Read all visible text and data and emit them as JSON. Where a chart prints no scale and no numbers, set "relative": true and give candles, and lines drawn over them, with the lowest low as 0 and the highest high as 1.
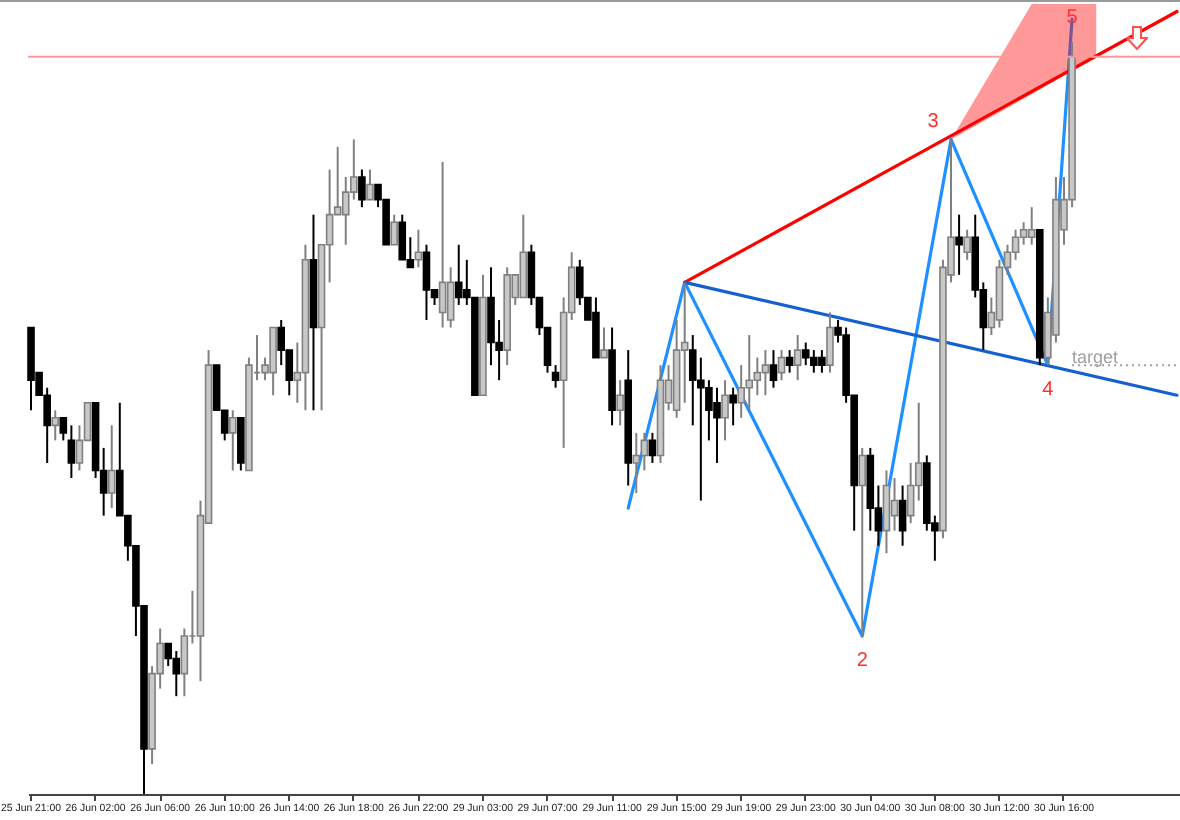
{
  "chart_data": {
    "type": "candlestick",
    "relative": true,
    "categories": [
      "25 Jun 21:00",
      null,
      null,
      null,
      null,
      null,
      null,
      null,
      "26 Jun 02:00",
      null,
      null,
      null,
      null,
      null,
      null,
      null,
      "26 Jun 06:00",
      null,
      null,
      null,
      null,
      null,
      null,
      null,
      "26 Jun 10:00",
      null,
      null,
      null,
      null,
      null,
      null,
      null,
      "26 Jun 14:00",
      null,
      null,
      null,
      null,
      null,
      null,
      null,
      "26 Jun 18:00",
      null,
      null,
      null,
      null,
      null,
      null,
      null,
      "26 Jun 22:00",
      null,
      null,
      null,
      null,
      null,
      null,
      null,
      "29 Jun 03:00",
      null,
      null,
      null,
      null,
      null,
      null,
      null,
      "29 Jun 07:00",
      null,
      null,
      null,
      null,
      null,
      null,
      null,
      "29 Jun 11:00",
      null,
      null,
      null,
      null,
      null,
      null,
      null,
      "29 Jun 15:00",
      null,
      null,
      null,
      null,
      null,
      null,
      null,
      "29 Jun 19:00",
      null,
      null,
      null,
      null,
      null,
      null,
      null,
      "29 Jun 23:00",
      null,
      null,
      null,
      null,
      null,
      null,
      null,
      "30 Jun 04:00",
      null,
      null,
      null,
      null,
      null,
      null,
      null,
      "30 Jun 08:00",
      null,
      null,
      null,
      null,
      null,
      null,
      null,
      "30 Jun 12:00",
      null,
      null,
      null,
      null,
      null,
      null,
      null,
      "30 Jun 16:00",
      null,
      null,
      null,
      null,
      null,
      null,
      null,
      null,
      null,
      null,
      null,
      null,
      null,
      null
    ],
    "ohlc": [
      [
        0.62,
        0.62,
        0.51,
        0.55
      ],
      [
        0.56,
        0.56,
        0.53,
        0.53
      ],
      [
        0.53,
        0.54,
        0.44,
        0.49
      ],
      [
        0.49,
        0.51,
        0.47,
        0.5
      ],
      [
        0.5,
        0.5,
        0.47,
        0.48
      ],
      [
        0.47,
        0.49,
        0.42,
        0.44
      ],
      [
        0.44,
        0.49,
        0.43,
        0.47
      ],
      [
        0.47,
        0.52,
        0.47,
        0.52
      ],
      [
        0.52,
        0.52,
        0.42,
        0.43
      ],
      [
        0.43,
        0.46,
        0.37,
        0.4
      ],
      [
        0.4,
        0.49,
        0.38,
        0.43
      ],
      [
        0.43,
        0.52,
        0.37,
        0.37
      ],
      [
        0.37,
        0.37,
        0.31,
        0.33
      ],
      [
        0.33,
        0.33,
        0.21,
        0.25
      ],
      [
        0.25,
        0.25,
        0,
        0.06
      ],
      [
        0.06,
        0.17,
        0.04,
        0.16
      ],
      [
        0.16,
        0.22,
        0.14,
        0.2
      ],
      [
        0.2,
        0.2,
        0.17,
        0.18
      ],
      [
        0.18,
        0.19,
        0.13,
        0.16
      ],
      [
        0.16,
        0.22,
        0.13,
        0.21
      ],
      [
        0.21,
        0.27,
        0.2,
        0.21
      ],
      [
        0.21,
        0.39,
        0.15,
        0.37
      ],
      [
        0.36,
        0.59,
        0.36,
        0.57
      ],
      [
        0.57,
        0.57,
        0.51,
        0.51
      ],
      [
        0.51,
        0.51,
        0.47,
        0.48
      ],
      [
        0.48,
        0.51,
        0.43,
        0.5
      ],
      [
        0.5,
        0.5,
        0.43,
        0.44
      ],
      [
        0.43,
        0.58,
        0.43,
        0.57
      ],
      [
        0.56,
        0.61,
        0.55,
        0.56
      ],
      [
        0.56,
        0.58,
        0.55,
        0.57
      ],
      [
        0.56,
        0.62,
        0.53,
        0.62
      ],
      [
        0.62,
        0.63,
        0.57,
        0.59
      ],
      [
        0.59,
        0.59,
        0.53,
        0.55
      ],
      [
        0.55,
        0.6,
        0.52,
        0.56
      ],
      [
        0.56,
        0.73,
        0.51,
        0.71
      ],
      [
        0.71,
        0.77,
        0.51,
        0.62
      ],
      [
        0.62,
        0.73,
        0.51,
        0.73
      ],
      [
        0.73,
        0.83,
        0.68,
        0.77
      ],
      [
        0.77,
        0.86,
        0.77,
        0.78
      ],
      [
        0.77,
        0.82,
        0.73,
        0.8
      ],
      [
        0.8,
        0.87,
        0.79,
        0.82
      ],
      [
        0.82,
        0.83,
        0.78,
        0.79
      ],
      [
        0.79,
        0.83,
        0.79,
        0.81
      ],
      [
        0.81,
        0.81,
        0.78,
        0.79
      ],
      [
        0.79,
        0.79,
        0.73,
        0.73
      ],
      [
        0.73,
        0.77,
        0.73,
        0.76
      ],
      [
        0.76,
        0.77,
        0.71,
        0.71
      ],
      [
        0.71,
        0.74,
        0.7,
        0.7
      ],
      [
        0.71,
        0.75,
        0.7,
        0.72
      ],
      [
        0.72,
        0.73,
        0.63,
        0.67
      ],
      [
        0.67,
        0.67,
        0.65,
        0.66
      ],
      [
        0.64,
        0.84,
        0.62,
        0.68
      ],
      [
        0.63,
        0.7,
        0.62,
        0.68
      ],
      [
        0.68,
        0.73,
        0.65,
        0.66
      ],
      [
        0.67,
        0.71,
        0.65,
        0.66
      ],
      [
        0.66,
        0.66,
        0.53,
        0.53
      ],
      [
        0.53,
        0.69,
        0.53,
        0.66
      ],
      [
        0.66,
        0.7,
        0.57,
        0.6
      ],
      [
        0.6,
        0.63,
        0.55,
        0.59
      ],
      [
        0.59,
        0.7,
        0.57,
        0.69
      ],
      [
        0.66,
        0.69,
        0.65,
        0.69
      ],
      [
        0.66,
        0.77,
        0.66,
        0.72
      ],
      [
        0.72,
        0.73,
        0.65,
        0.66
      ],
      [
        0.66,
        0.66,
        0.61,
        0.62
      ],
      [
        0.62,
        0.62,
        0.56,
        0.57
      ],
      [
        0.56,
        0.57,
        0.54,
        0.55
      ],
      [
        0.55,
        0.66,
        0.46,
        0.64
      ],
      [
        0.64,
        0.72,
        0.63,
        0.7
      ],
      [
        0.7,
        0.71,
        0.65,
        0.66
      ],
      [
        0.66,
        0.66,
        0.63,
        0.63
      ],
      [
        0.64,
        0.66,
        0.58,
        0.58
      ],
      [
        0.58,
        0.62,
        0.58,
        0.59
      ],
      [
        0.59,
        0.62,
        0.49,
        0.51
      ],
      [
        0.51,
        0.55,
        0.49,
        0.53
      ],
      [
        0.55,
        0.59,
        0.41,
        0.44
      ],
      [
        0.44,
        0.48,
        0.4,
        0.45
      ],
      [
        0.45,
        0.48,
        0.43,
        0.47
      ],
      [
        0.47,
        0.48,
        0.44,
        0.45
      ],
      [
        0.45,
        0.57,
        0.44,
        0.55
      ],
      [
        0.52,
        0.57,
        0.51,
        0.55
      ],
      [
        0.51,
        0.63,
        0.5,
        0.59
      ],
      [
        0.59,
        0.68,
        0.52,
        0.6
      ],
      [
        0.59,
        0.61,
        0.49,
        0.55
      ],
      [
        0.55,
        0.58,
        0.39,
        0.54
      ],
      [
        0.54,
        0.55,
        0.47,
        0.51
      ],
      [
        0.52,
        0.54,
        0.44,
        0.5
      ],
      [
        0.5,
        0.55,
        0.47,
        0.53
      ],
      [
        0.53,
        0.54,
        0.49,
        0.52
      ],
      [
        0.52,
        0.57,
        0.5,
        0.54
      ],
      [
        0.54,
        0.61,
        0.51,
        0.55
      ],
      [
        0.55,
        0.58,
        0.53,
        0.56
      ],
      [
        0.56,
        0.59,
        0.53,
        0.57
      ],
      [
        0.57,
        0.59,
        0.54,
        0.55
      ],
      [
        0.56,
        0.59,
        0.55,
        0.58
      ],
      [
        0.58,
        0.59,
        0.56,
        0.57
      ],
      [
        0.57,
        0.61,
        0.55,
        0.59
      ],
      [
        0.59,
        0.6,
        0.57,
        0.58
      ],
      [
        0.58,
        0.59,
        0.56,
        0.57
      ],
      [
        0.58,
        0.59,
        0.56,
        0.57
      ],
      [
        0.57,
        0.64,
        0.56,
        0.62
      ],
      [
        0.62,
        0.63,
        0.6,
        0.61
      ],
      [
        0.61,
        0.62,
        0.52,
        0.53
      ],
      [
        0.53,
        0.53,
        0.35,
        0.41
      ],
      [
        0.41,
        0.46,
        0.21,
        0.45
      ],
      [
        0.45,
        0.46,
        0.35,
        0.38
      ],
      [
        0.38,
        0.41,
        0.33,
        0.35
      ],
      [
        0.35,
        0.43,
        0.32,
        0.41
      ],
      [
        0.37,
        0.42,
        0.35,
        0.39
      ],
      [
        0.39,
        0.41,
        0.33,
        0.35
      ],
      [
        0.37,
        0.44,
        0.36,
        0.41
      ],
      [
        0.41,
        0.52,
        0.39,
        0.44
      ],
      [
        0.44,
        0.45,
        0.35,
        0.36
      ],
      [
        0.36,
        0.37,
        0.31,
        0.35
      ],
      [
        0.35,
        0.71,
        0.34,
        0.7
      ],
      [
        0.69,
        0.87,
        0.68,
        0.74
      ],
      [
        0.74,
        0.77,
        0.69,
        0.73
      ],
      [
        0.72,
        0.75,
        0.71,
        0.74
      ],
      [
        0.74,
        0.77,
        0.66,
        0.67
      ],
      [
        0.67,
        0.68,
        0.59,
        0.62
      ],
      [
        0.62,
        0.66,
        0.61,
        0.64
      ],
      [
        0.63,
        0.71,
        0.62,
        0.7
      ],
      [
        0.7,
        0.73,
        0.69,
        0.72
      ],
      [
        0.72,
        0.75,
        0.71,
        0.74
      ],
      [
        0.74,
        0.76,
        0.73,
        0.75
      ],
      [
        0.74,
        0.78,
        0.73,
        0.75
      ],
      [
        0.75,
        0.75,
        0.57,
        0.58
      ],
      [
        0.58,
        0.66,
        0.57,
        0.64
      ],
      [
        0.61,
        0.82,
        0.6,
        0.79
      ],
      [
        0.75,
        0.82,
        0.73,
        0.79
      ],
      [
        0.79,
        1.0,
        0.78,
        0.98
      ],
      null,
      null,
      null,
      null,
      null,
      null,
      null,
      null,
      null,
      null,
      null,
      null,
      null
    ],
    "series": [
      {
        "type": "line",
        "color": "#1e90ff",
        "values": [
          null,
          null,
          null,
          null,
          null,
          null,
          null,
          null,
          null,
          null,
          null,
          null,
          null,
          null,
          null,
          null,
          null,
          null,
          null,
          null,
          null,
          null,
          null,
          null,
          null,
          null,
          null,
          null,
          null,
          null,
          null,
          null,
          null,
          null,
          null,
          null,
          null,
          null,
          null,
          null,
          null,
          null,
          null,
          null,
          null,
          null,
          null,
          null,
          null,
          null,
          null,
          null,
          null,
          null,
          null,
          null,
          null,
          null,
          null,
          null,
          null,
          null,
          null,
          null,
          null,
          null,
          null,
          null,
          null,
          null,
          null,
          null,
          null,
          null,
          0.38,
          null,
          null,
          null,
          null,
          null,
          null,
          0.68,
          null,
          null,
          null,
          null,
          null,
          null,
          null,
          null,
          null,
          null,
          null,
          null,
          null,
          null,
          null,
          null,
          null,
          null,
          null,
          null,
          null,
          0.21,
          null,
          null,
          null,
          null,
          null,
          null,
          null,
          null,
          null,
          null,
          0.87,
          null,
          null,
          null,
          null,
          null,
          null,
          null,
          null,
          null,
          null,
          null,
          0.57,
          null,
          null,
          1.03,
          null,
          null,
          null,
          null,
          null,
          null,
          null,
          null,
          null,
          null,
          null,
          null,
          null
        ]
      },
      {
        "type": "line",
        "color": "#ff0000",
        "values": [
          null,
          null,
          null,
          null,
          null,
          null,
          null,
          null,
          null,
          null,
          null,
          null,
          null,
          null,
          null,
          null,
          null,
          null,
          null,
          null,
          null,
          null,
          null,
          null,
          null,
          null,
          null,
          null,
          null,
          null,
          null,
          null,
          null,
          null,
          null,
          null,
          null,
          null,
          null,
          null,
          null,
          null,
          null,
          null,
          null,
          null,
          null,
          null,
          null,
          null,
          null,
          null,
          null,
          null,
          null,
          null,
          null,
          null,
          null,
          null,
          null,
          null,
          null,
          null,
          null,
          null,
          null,
          null,
          null,
          null,
          null,
          null,
          null,
          null,
          null,
          null,
          null,
          null,
          null,
          null,
          null,
          0.68,
          null,
          null,
          null,
          null,
          null,
          null,
          null,
          null,
          null,
          null,
          null,
          null,
          null,
          null,
          null,
          null,
          null,
          null,
          null,
          null,
          null,
          null,
          null,
          null,
          null,
          null,
          null,
          null,
          null,
          null,
          null,
          null,
          null,
          null,
          null,
          null,
          null,
          null,
          null,
          null,
          null,
          null,
          null,
          null,
          null,
          null,
          null,
          null,
          null,
          null,
          null,
          null,
          null,
          null,
          null,
          null,
          null,
          null,
          null,
          null,
          1.04
        ],
        "lower": [
          null,
          null,
          null,
          null,
          null,
          null,
          null,
          null,
          null,
          null,
          null,
          null,
          null,
          null,
          null,
          null,
          null,
          null,
          null,
          null,
          null,
          null,
          null,
          null,
          null,
          null,
          null,
          null,
          null,
          null,
          null,
          null,
          null,
          null,
          null,
          null,
          null,
          null,
          null,
          null,
          null,
          null,
          null,
          null,
          null,
          null,
          null,
          null,
          null,
          null,
          null,
          null,
          null,
          null,
          null,
          null,
          null,
          null,
          null,
          null,
          null,
          null,
          null,
          null,
          null,
          null,
          null,
          null,
          null,
          null,
          null,
          null,
          null,
          null,
          null,
          null,
          null,
          null,
          null,
          null,
          null,
          null,
          null,
          null,
          null,
          null,
          null,
          null,
          null,
          null,
          null,
          null,
          null,
          null,
          null,
          null,
          null,
          null,
          null,
          null,
          null,
          null,
          null,
          null,
          null,
          null,
          null,
          null,
          null,
          null,
          null,
          null,
          null,
          null,
          0.87,
          null,
          null,
          null,
          null,
          null,
          null,
          null,
          null,
          null,
          0.93,
          null,
          null,
          null,
          null,
          null,
          null,
          null,
          0.98,
          null,
          null,
          null,
          null,
          null,
          null,
          null,
          null,
          null,
          null
        ],
        "upper": [
          null,
          null,
          null,
          null,
          null,
          null,
          null,
          null,
          null,
          null,
          null,
          null,
          null,
          null,
          null,
          null,
          null,
          null,
          null,
          null,
          null,
          null,
          null,
          null,
          null,
          null,
          null,
          null,
          null,
          null,
          null,
          null,
          null,
          null,
          null,
          null,
          null,
          null,
          null,
          null,
          null,
          null,
          null,
          null,
          null,
          null,
          null,
          null,
          null,
          null,
          null,
          null,
          null,
          null,
          null,
          null,
          null,
          null,
          null,
          null,
          null,
          null,
          null,
          null,
          null,
          null,
          null,
          null,
          null,
          null,
          null,
          null,
          null,
          null,
          null,
          null,
          null,
          null,
          null,
          null,
          null,
          null,
          null,
          null,
          null,
          null,
          null,
          null,
          null,
          null,
          null,
          null,
          null,
          null,
          null,
          null,
          null,
          null,
          null,
          null,
          null,
          null,
          null,
          null,
          null,
          null,
          null,
          null,
          null,
          null,
          null,
          null,
          null,
          null,
          0.87,
          null,
          null,
          null,
          null,
          null,
          null,
          null,
          null,
          null,
          1.05,
          null,
          null,
          null,
          null,
          null,
          null,
          null,
          1.05,
          null,
          null,
          null,
          null,
          null,
          null,
          null,
          null,
          null,
          null
        ]
      },
      {
        "type": "line",
        "color": "#1560d0",
        "values": [
          null,
          null,
          null,
          null,
          null,
          null,
          null,
          null,
          null,
          null,
          null,
          null,
          null,
          null,
          null,
          null,
          null,
          null,
          null,
          null,
          null,
          null,
          null,
          null,
          null,
          null,
          null,
          null,
          null,
          null,
          null,
          null,
          null,
          null,
          null,
          null,
          null,
          null,
          null,
          null,
          null,
          null,
          null,
          null,
          null,
          null,
          null,
          null,
          null,
          null,
          null,
          null,
          null,
          null,
          null,
          null,
          null,
          null,
          null,
          null,
          null,
          null,
          null,
          null,
          null,
          null,
          null,
          null,
          null,
          null,
          null,
          null,
          null,
          null,
          null,
          null,
          null,
          null,
          null,
          null,
          null,
          0.68,
          null,
          null,
          null,
          null,
          null,
          null,
          null,
          null,
          null,
          null,
          null,
          null,
          null,
          null,
          null,
          null,
          null,
          null,
          null,
          null,
          null,
          null,
          null,
          null,
          null,
          null,
          null,
          null,
          null,
          null,
          null,
          null,
          null,
          null,
          null,
          null,
          null,
          null,
          null,
          null,
          null,
          null,
          null,
          null,
          null,
          null,
          null,
          null,
          null,
          null,
          null,
          null,
          null,
          null,
          null,
          null,
          null,
          null,
          null,
          null,
          0.53
        ]
      }
    ],
    "annotations": [
      "2",
      "3",
      "4",
      "5"
    ],
    "ref_lines": [
      {
        "axis": "y",
        "value": 0.98,
        "color": "#ff9a9a"
      },
      {
        "axis": "y",
        "value": 0.57,
        "label": "target",
        "color": "#a0a0a0",
        "line_style": "dotted"
      }
    ]
  }
}
